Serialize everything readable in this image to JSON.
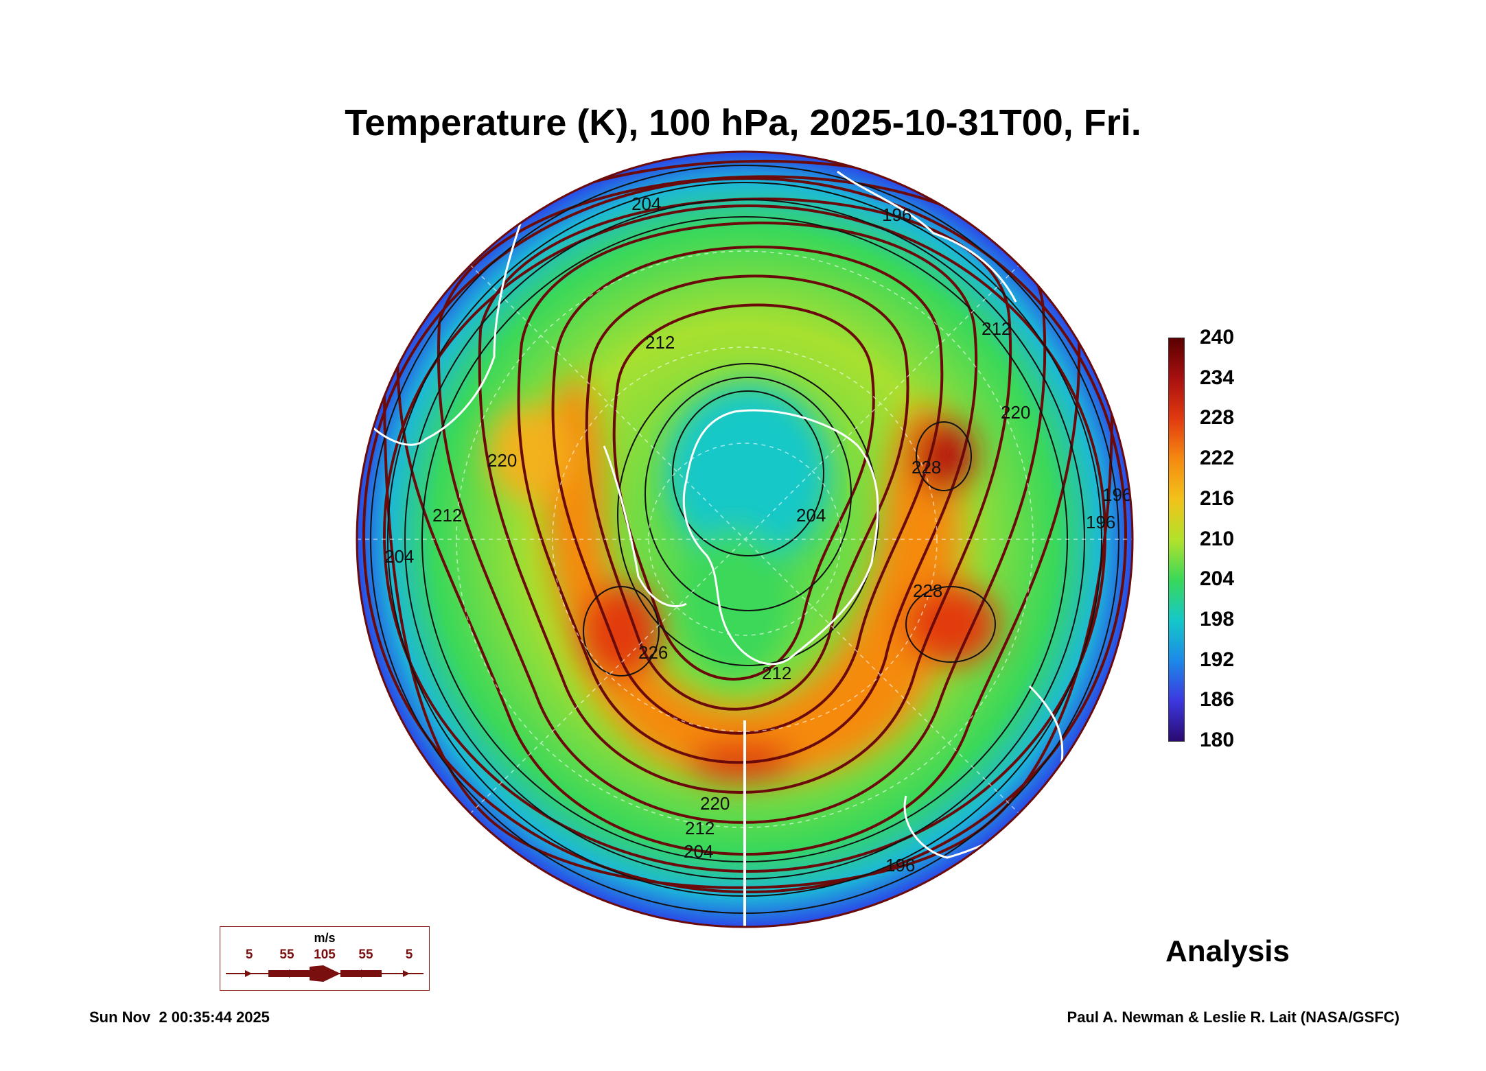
{
  "title": "Temperature (K), 100 hPa, 2025-10-31T00, Fri.",
  "colorbar": {
    "ticks": [
      "240",
      "234",
      "228",
      "222",
      "216",
      "210",
      "204",
      "198",
      "192",
      "186",
      "180"
    ],
    "colors": [
      "#5a0000",
      "#a81010",
      "#e23a10",
      "#f58a10",
      "#f2c21a",
      "#b2e22a",
      "#3ad85a",
      "#14c8c8",
      "#1c8ae8",
      "#3c38e0",
      "#2a0a70"
    ]
  },
  "contour_labels": [
    "204",
    "196",
    "212",
    "220",
    "228",
    "204",
    "212",
    "220",
    "204",
    "196",
    "212",
    "228",
    "226",
    "212",
    "220",
    "212",
    "204",
    "196",
    "196"
  ],
  "stamp": "Analysis",
  "wind_legend": {
    "units": "m/s",
    "values": [
      "5",
      "55",
      "105",
      "55",
      "5"
    ]
  },
  "footer": {
    "timestamp": "Sun Nov  2 00:35:44 2025",
    "credit": "Paul A. Newman & Leslie R. Lait (NASA/GSFC)"
  }
}
